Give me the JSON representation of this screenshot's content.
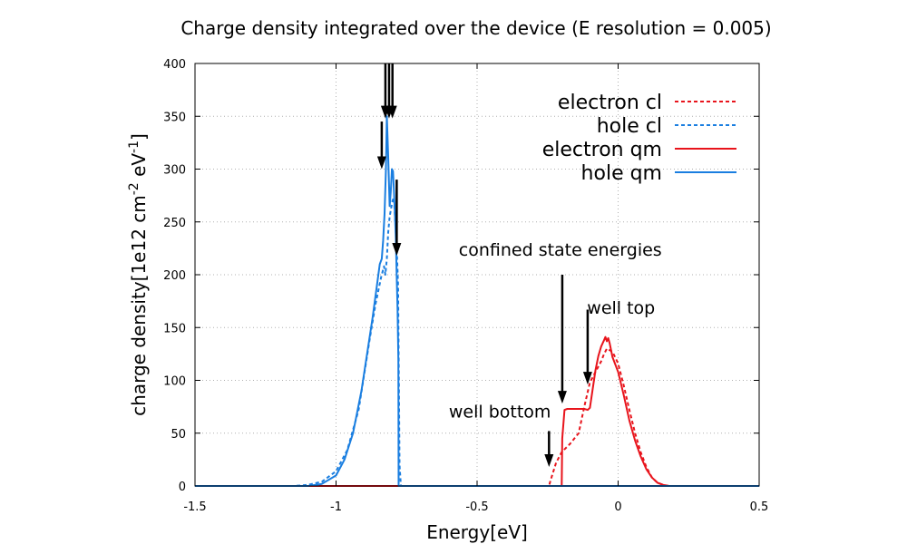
{
  "chart_data": {
    "type": "line",
    "title": "Charge density integrated over the device (E resolution = 0.005)",
    "xlabel": "Energy[eV]",
    "ylabel": {
      "base": "charge density[1e12 cm",
      "sup1": "-2",
      "mid": " eV",
      "sup2": "-1",
      "end": "]"
    },
    "xlim": [
      -1.5,
      0.5
    ],
    "ylim": [
      0,
      400
    ],
    "xticks": [
      {
        "value": -1.5,
        "label": "-1.5"
      },
      {
        "value": -1,
        "label": "-1"
      },
      {
        "value": -0.5,
        "label": "-0.5"
      },
      {
        "value": 0,
        "label": "0"
      },
      {
        "value": 0.5,
        "label": "0.5"
      }
    ],
    "yticks": [
      {
        "value": 0,
        "label": "0"
      },
      {
        "value": 50,
        "label": "50"
      },
      {
        "value": 100,
        "label": "100"
      },
      {
        "value": 150,
        "label": "150"
      },
      {
        "value": 200,
        "label": "200"
      },
      {
        "value": 250,
        "label": "250"
      },
      {
        "value": 300,
        "label": "300"
      },
      {
        "value": 350,
        "label": "350"
      },
      {
        "value": 400,
        "label": "400"
      }
    ],
    "grid": true,
    "legend_position": "top-right",
    "series": [
      {
        "name": "electron cl",
        "color": "#e8141c",
        "dash": "dotted",
        "x": [
          -1.5,
          -0.245,
          -0.24,
          -0.22,
          -0.2,
          -0.17,
          -0.14,
          -0.12,
          -0.1,
          -0.08,
          -0.06,
          -0.05,
          -0.04,
          -0.02,
          0.0,
          0.02,
          0.04,
          0.06,
          0.08,
          0.1,
          0.12,
          0.14,
          0.16,
          0.18,
          0.2,
          0.5
        ],
        "y": [
          0,
          0,
          5,
          22,
          32,
          40,
          50,
          75,
          98,
          108,
          118,
          125,
          130,
          127,
          116,
          95,
          72,
          50,
          32,
          18,
          8,
          3,
          1,
          0,
          0,
          0
        ]
      },
      {
        "name": "hole cl",
        "color": "#1a7ee0",
        "dash": "dotted",
        "x": [
          -1.5,
          -1.15,
          -1.1,
          -1.05,
          -1.0,
          -0.96,
          -0.92,
          -0.88,
          -0.86,
          -0.84,
          -0.83,
          -0.825,
          -0.82,
          -0.815,
          -0.81,
          -0.8,
          -0.795,
          -0.79,
          -0.785,
          -0.78,
          -0.775,
          -0.77,
          0.5
        ],
        "y": [
          0,
          0,
          1,
          4,
          14,
          34,
          72,
          140,
          172,
          198,
          208,
          200,
          215,
          240,
          255,
          270,
          273,
          250,
          225,
          190,
          20,
          0,
          0
        ]
      },
      {
        "name": "electron qm",
        "color": "#e8141c",
        "dash": "solid",
        "x": [
          -1.5,
          -0.2,
          -0.198,
          -0.19,
          -0.18,
          -0.15,
          -0.12,
          -0.108,
          -0.1,
          -0.09,
          -0.08,
          -0.07,
          -0.06,
          -0.05,
          -0.045,
          -0.04,
          -0.035,
          -0.03,
          -0.02,
          -0.01,
          0.0,
          0.02,
          0.04,
          0.06,
          0.08,
          0.1,
          0.12,
          0.14,
          0.16,
          0.18,
          0.2,
          0.5
        ],
        "y": [
          0,
          0,
          45,
          72,
          73,
          73,
          73,
          72,
          74,
          92,
          110,
          123,
          132,
          138,
          141,
          137,
          140,
          135,
          122,
          115,
          108,
          86,
          62,
          43,
          28,
          16,
          8,
          3,
          1,
          0,
          0,
          0
        ]
      },
      {
        "name": "hole qm",
        "color": "#1a7ee0",
        "dash": "solid",
        "x": [
          -1.5,
          -1.1,
          -1.05,
          -1.0,
          -0.97,
          -0.94,
          -0.91,
          -0.89,
          -0.87,
          -0.855,
          -0.845,
          -0.838,
          -0.833,
          -0.828,
          -0.823,
          -0.82,
          -0.815,
          -0.81,
          -0.806,
          -0.802,
          -0.798,
          -0.795,
          -0.792,
          -0.788,
          -0.785,
          -0.782,
          -0.779,
          -0.778,
          -0.77,
          0.5
        ],
        "y": [
          0,
          0,
          2,
          10,
          25,
          50,
          90,
          125,
          160,
          190,
          210,
          215,
          232,
          258,
          300,
          350,
          312,
          265,
          278,
          300,
          298,
          280,
          262,
          235,
          198,
          168,
          120,
          0,
          0,
          0
        ]
      }
    ],
    "arrows": [
      {
        "x": -0.825,
        "y_from": 400,
        "y_to": 348
      },
      {
        "x": -0.812,
        "y_from": 400,
        "y_to": 348
      },
      {
        "x": -0.8,
        "y_from": 400,
        "y_to": 348
      },
      {
        "x": -0.838,
        "y_from": 345,
        "y_to": 300
      },
      {
        "x": -0.785,
        "y_from": 290,
        "y_to": 218
      },
      {
        "x": -0.245,
        "y_from": 52,
        "y_to": 18
      },
      {
        "x": -0.198,
        "y_from": 200,
        "y_to": 78
      },
      {
        "x": -0.108,
        "y_from": 167,
        "y_to": 96
      }
    ],
    "annotations": [
      {
        "text": "confined state energies",
        "x": -0.205,
        "y": 218,
        "anchor": "middle"
      },
      {
        "text": "well top",
        "x": -0.11,
        "y": 163,
        "anchor": "start"
      },
      {
        "text": "well bottom",
        "x": -0.6,
        "y": 65,
        "anchor": "start"
      }
    ]
  }
}
